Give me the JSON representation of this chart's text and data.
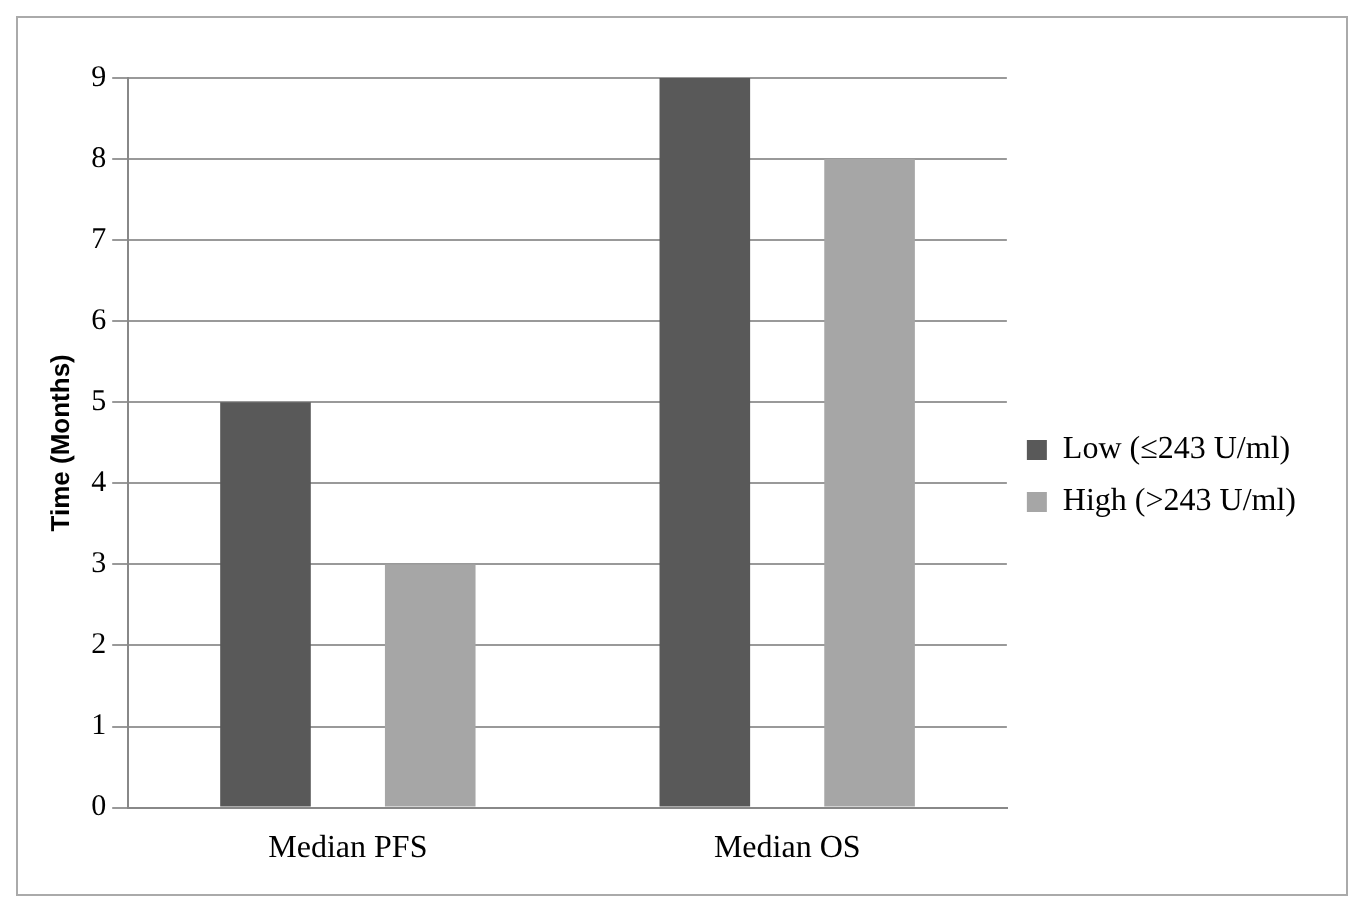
{
  "chart_data": {
    "type": "bar",
    "ylabel": "Time (Months)",
    "categories": [
      "Median PFS",
      "Median OS"
    ],
    "series": [
      {
        "name": "Low (≤243 U/ml)",
        "color": "#595959",
        "values": [
          5,
          9
        ]
      },
      {
        "name": "High (>243 U/ml)",
        "color": "#a6a6a6",
        "values": [
          3,
          8
        ]
      }
    ],
    "ylim": [
      0,
      9
    ],
    "yticks": [
      0,
      1,
      2,
      3,
      4,
      5,
      6,
      7,
      8,
      9
    ],
    "grid": "y",
    "legend": "right"
  }
}
